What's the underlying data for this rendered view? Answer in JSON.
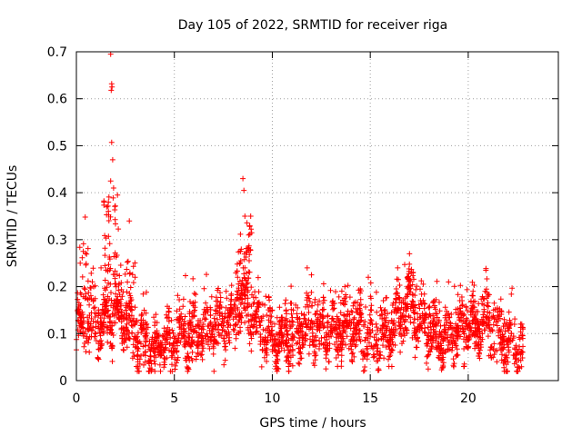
{
  "chart_data": {
    "type": "scatter",
    "title": "Day 105 of 2022, SRMTID for receiver riga",
    "xlabel": "GPS time / hours",
    "ylabel": "SRMTID / TECUs",
    "xlim": [
      0,
      24.6
    ],
    "ylim": [
      0,
      0.7
    ],
    "xticks": [
      0,
      5,
      10,
      15,
      20
    ],
    "yticks": [
      0,
      0.1,
      0.2,
      0.3,
      0.4,
      0.5,
      0.6,
      0.7
    ],
    "xtick_labels": [
      "0",
      "5",
      "10",
      "15",
      "20"
    ],
    "ytick_labels": [
      "0",
      "0.1",
      "0.2",
      "0.3",
      "0.4",
      "0.5",
      "0.6",
      "0.7"
    ],
    "grid": true,
    "marker": "+",
    "color": "#ff0000",
    "x_end": 22.8,
    "n_points": 2600,
    "background_level": [
      [
        0,
        0.11
      ],
      [
        1.0,
        0.12
      ],
      [
        1.5,
        0.13
      ],
      [
        2.0,
        0.14
      ],
      [
        2.5,
        0.13
      ],
      [
        3.0,
        0.09
      ],
      [
        4.0,
        0.07
      ],
      [
        5.0,
        0.09
      ],
      [
        6.0,
        0.1
      ],
      [
        7.0,
        0.11
      ],
      [
        8.0,
        0.14
      ],
      [
        8.5,
        0.17
      ],
      [
        9.0,
        0.14
      ],
      [
        10.0,
        0.09
      ],
      [
        11.0,
        0.1
      ],
      [
        12.0,
        0.11
      ],
      [
        13.0,
        0.1
      ],
      [
        14.0,
        0.11
      ],
      [
        15.0,
        0.09
      ],
      [
        16.0,
        0.1
      ],
      [
        16.5,
        0.14
      ],
      [
        17.0,
        0.16
      ],
      [
        17.5,
        0.12
      ],
      [
        18.0,
        0.1
      ],
      [
        19.0,
        0.09
      ],
      [
        20.0,
        0.12
      ],
      [
        21.0,
        0.12
      ],
      [
        22.0,
        0.08
      ],
      [
        22.8,
        0.07
      ]
    ],
    "notable_points": [
      {
        "x": 1.75,
        "y": 0.695
      },
      {
        "x": 1.8,
        "y": 0.632
      },
      {
        "x": 1.82,
        "y": 0.625
      },
      {
        "x": 1.78,
        "y": 0.618
      },
      {
        "x": 1.8,
        "y": 0.507
      },
      {
        "x": 1.85,
        "y": 0.47
      },
      {
        "x": 1.75,
        "y": 0.425
      },
      {
        "x": 1.9,
        "y": 0.41
      },
      {
        "x": 2.1,
        "y": 0.395
      },
      {
        "x": 0.45,
        "y": 0.348
      },
      {
        "x": 2.7,
        "y": 0.34
      },
      {
        "x": 8.5,
        "y": 0.43
      },
      {
        "x": 8.55,
        "y": 0.405
      },
      {
        "x": 8.9,
        "y": 0.35
      },
      {
        "x": 8.6,
        "y": 0.35
      },
      {
        "x": 8.8,
        "y": 0.31
      },
      {
        "x": 17.0,
        "y": 0.27
      },
      {
        "x": 20.9,
        "y": 0.235
      },
      {
        "x": 12.0,
        "y": 0.225
      },
      {
        "x": 14.9,
        "y": 0.22
      },
      {
        "x": 13.7,
        "y": 0.2
      },
      {
        "x": 19.0,
        "y": 0.21
      },
      {
        "x": 4.8,
        "y": 0.02
      },
      {
        "x": 16.1,
        "y": 0.03
      }
    ]
  }
}
